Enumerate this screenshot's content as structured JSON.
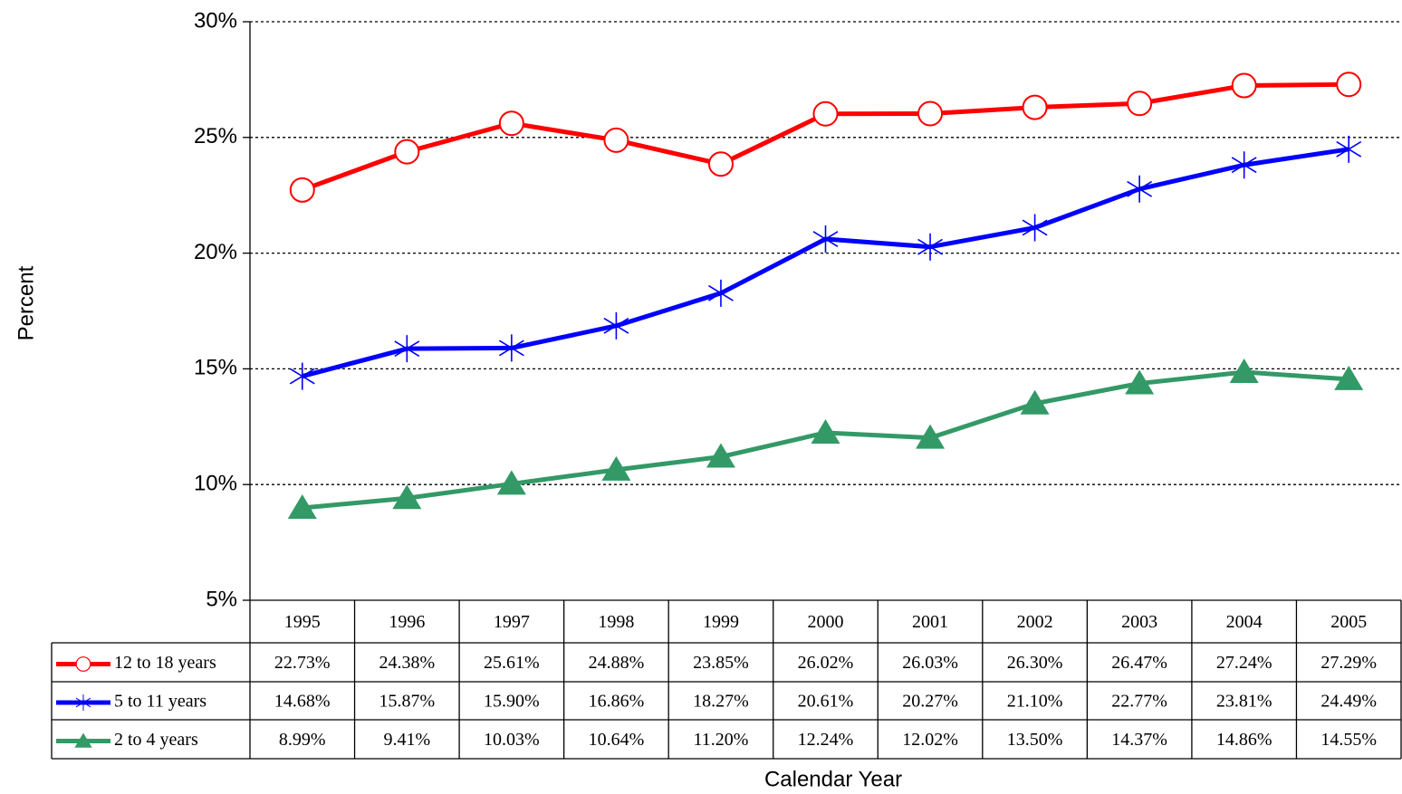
{
  "chart_data": {
    "type": "line",
    "x_label": "Calendar Year",
    "y_label": "Percent",
    "categories": [
      "1995",
      "1996",
      "1997",
      "1998",
      "1999",
      "2000",
      "2001",
      "2002",
      "2003",
      "2004",
      "2005"
    ],
    "series": [
      {
        "name": "12 to 18 years",
        "color": "#ff0000",
        "marker": "circle",
        "values": [
          22.73,
          24.38,
          25.61,
          24.88,
          23.85,
          26.02,
          26.03,
          26.3,
          26.47,
          27.24,
          27.29
        ],
        "value_labels": [
          "22.73%",
          "24.38%",
          "25.61%",
          "24.88%",
          "23.85%",
          "26.02%",
          "26.03%",
          "26.30%",
          "26.47%",
          "27.24%",
          "27.29%"
        ]
      },
      {
        "name": "5 to 11 years",
        "color": "#0000ff",
        "marker": "asterisk",
        "values": [
          14.68,
          15.87,
          15.9,
          16.86,
          18.27,
          20.61,
          20.27,
          21.1,
          22.77,
          23.81,
          24.49
        ],
        "value_labels": [
          "14.68%",
          "15.87%",
          "15.90%",
          "16.86%",
          "18.27%",
          "20.61%",
          "20.27%",
          "21.10%",
          "22.77%",
          "23.81%",
          "24.49%"
        ]
      },
      {
        "name": "2 to 4 years",
        "color": "#339966",
        "marker": "triangle",
        "values": [
          8.99,
          9.41,
          10.03,
          10.64,
          11.2,
          12.24,
          12.02,
          13.5,
          14.37,
          14.86,
          14.55
        ],
        "value_labels": [
          "8.99%",
          "9.41%",
          "10.03%",
          "10.64%",
          "11.20%",
          "12.24%",
          "12.02%",
          "13.50%",
          "14.37%",
          "14.86%",
          "14.55%"
        ]
      }
    ],
    "ylim": [
      5,
      30
    ],
    "yticks": [
      {
        "value": 5,
        "label": "5%"
      },
      {
        "value": 10,
        "label": "10%"
      },
      {
        "value": 15,
        "label": "15%"
      },
      {
        "value": 20,
        "label": "20%"
      },
      {
        "value": 25,
        "label": "25%"
      },
      {
        "value": 30,
        "label": "30%"
      }
    ],
    "grid": true
  }
}
